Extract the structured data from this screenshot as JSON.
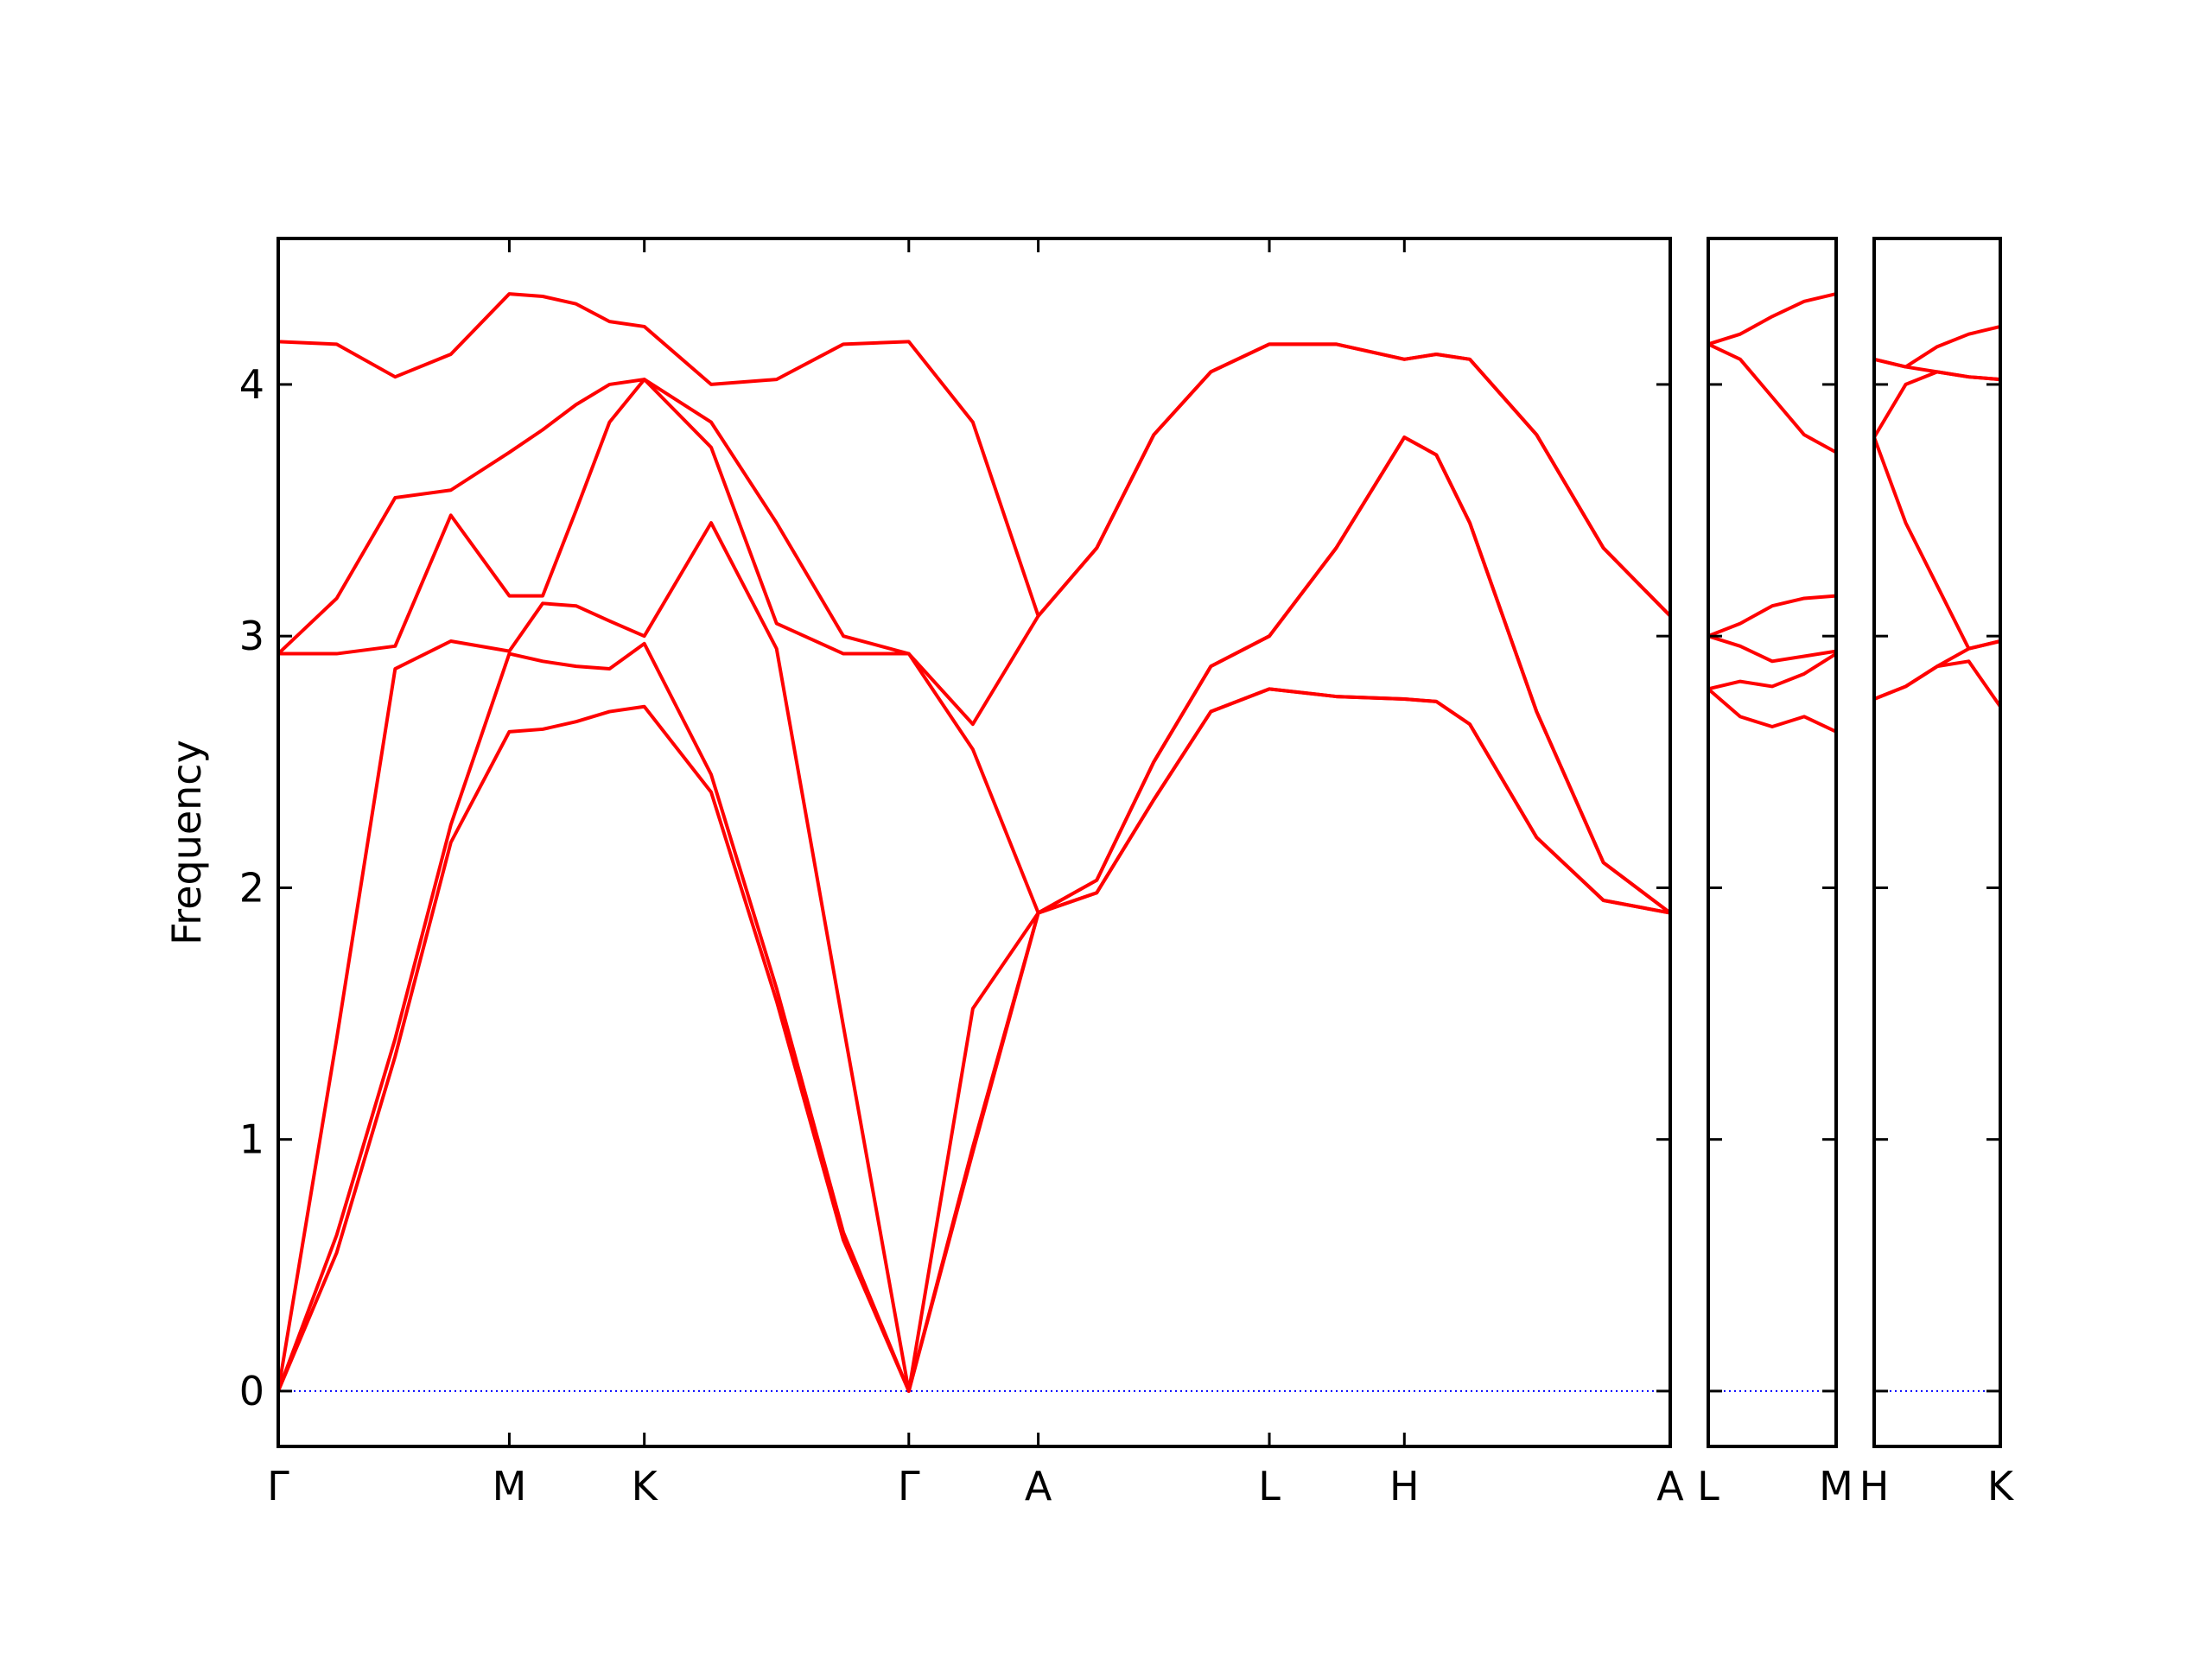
{
  "chart_data": [
    {
      "type": "line",
      "ylabel": "Frequency",
      "x": [
        0,
        0.042,
        0.084,
        0.124,
        0.166,
        0.19,
        0.214,
        0.238,
        0.263,
        0.311,
        0.358,
        0.406,
        0.453,
        0.499,
        0.546,
        0.588,
        0.629,
        0.67,
        0.712,
        0.76,
        0.809,
        0.832,
        0.856,
        0.904,
        0.952,
        1.0
      ],
      "xlim": [
        0,
        1
      ],
      "xticks": [
        {
          "value": 0,
          "label": "Γ"
        },
        {
          "value": 0.166,
          "label": "M"
        },
        {
          "value": 0.263,
          "label": "K"
        },
        {
          "value": 0.453,
          "label": "Γ"
        },
        {
          "value": 0.546,
          "label": "A"
        },
        {
          "value": 0.712,
          "label": "L"
        },
        {
          "value": 0.809,
          "label": "H"
        },
        {
          "value": 1.0,
          "label": "A"
        }
      ],
      "ylim": [
        -0.22,
        4.58
      ],
      "yticks": [
        0,
        1,
        2,
        3,
        4
      ],
      "show_ytick_labels": true,
      "hline": {
        "value": 0,
        "color": "#0000ff",
        "style": "dotted"
      },
      "series": [
        {
          "color": "#ff0000",
          "values": [
            0,
            0.55,
            1.33,
            2.18,
            2.62,
            2.63,
            2.66,
            2.7,
            2.72,
            2.38,
            1.55,
            0.6,
            0,
            0.95,
            1.9,
            1.98,
            2.35,
            2.7,
            2.79,
            2.76,
            2.75,
            2.74,
            2.65,
            2.2,
            1.95,
            1.9
          ]
        },
        {
          "color": "#ff0000",
          "values": [
            0,
            0.62,
            1.4,
            2.25,
            2.93,
            2.9,
            2.88,
            2.87,
            2.97,
            2.45,
            1.6,
            0.63,
            0,
            0.97,
            1.9,
            1.98,
            2.35,
            2.7,
            2.79,
            2.76,
            2.75,
            2.74,
            2.65,
            2.2,
            1.95,
            1.9
          ]
        },
        {
          "color": "#ff0000",
          "values": [
            0,
            1.4,
            2.87,
            2.98,
            2.94,
            3.13,
            3.12,
            3.06,
            3.0,
            3.45,
            2.95,
            1.45,
            0,
            1.52,
            1.9,
            2.03,
            2.5,
            2.88,
            3.0,
            3.35,
            3.79,
            3.72,
            3.45,
            2.7,
            2.1,
            1.9
          ]
        },
        {
          "color": "#ff0000",
          "values": [
            2.93,
            2.93,
            2.96,
            3.48,
            3.16,
            3.16,
            3.5,
            3.85,
            4.02,
            3.75,
            3.05,
            2.93,
            2.93,
            2.55,
            1.9,
            2.03,
            2.5,
            2.88,
            3.0,
            3.35,
            3.79,
            3.72,
            3.45,
            2.7,
            2.1,
            1.9
          ]
        },
        {
          "color": "#ff0000",
          "values": [
            2.93,
            3.15,
            3.55,
            3.58,
            3.73,
            3.82,
            3.92,
            4.0,
            4.02,
            3.85,
            3.45,
            3.0,
            2.93,
            2.65,
            3.08,
            3.35,
            3.8,
            4.05,
            4.16,
            4.16,
            4.1,
            4.12,
            4.1,
            3.8,
            3.35,
            3.08
          ]
        },
        {
          "color": "#ff0000",
          "values": [
            4.17,
            4.16,
            4.03,
            4.12,
            4.36,
            4.35,
            4.32,
            4.25,
            4.23,
            4.0,
            4.02,
            4.16,
            4.17,
            3.85,
            3.08,
            3.35,
            3.8,
            4.05,
            4.16,
            4.16,
            4.1,
            4.12,
            4.1,
            3.8,
            3.35,
            3.08
          ]
        }
      ]
    },
    {
      "type": "line",
      "x": [
        0,
        0.25,
        0.5,
        0.75,
        1.0
      ],
      "xlim": [
        0,
        1
      ],
      "xticks": [
        {
          "value": 0,
          "label": "L"
        },
        {
          "value": 1.0,
          "label": "M"
        }
      ],
      "ylim": [
        -0.22,
        4.58
      ],
      "yticks": [
        0,
        1,
        2,
        3,
        4
      ],
      "show_ytick_labels": false,
      "hline": {
        "value": 0,
        "color": "#0000ff",
        "style": "dotted"
      },
      "series": [
        {
          "color": "#ff0000",
          "values": [
            2.79,
            2.68,
            2.64,
            2.68,
            2.62
          ]
        },
        {
          "color": "#ff0000",
          "values": [
            2.79,
            2.82,
            2.8,
            2.85,
            2.93
          ]
        },
        {
          "color": "#ff0000",
          "values": [
            3.0,
            2.96,
            2.9,
            2.92,
            2.94
          ]
        },
        {
          "color": "#ff0000",
          "values": [
            3.0,
            3.05,
            3.12,
            3.15,
            3.16
          ]
        },
        {
          "color": "#ff0000",
          "values": [
            4.16,
            4.1,
            3.95,
            3.8,
            3.73
          ]
        },
        {
          "color": "#ff0000",
          "values": [
            4.16,
            4.2,
            4.27,
            4.33,
            4.36
          ]
        }
      ]
    },
    {
      "type": "line",
      "x": [
        0,
        0.25,
        0.5,
        0.75,
        1.0
      ],
      "xlim": [
        0,
        1
      ],
      "xticks": [
        {
          "value": 0,
          "label": "H"
        },
        {
          "value": 1.0,
          "label": "K"
        }
      ],
      "ylim": [
        -0.22,
        4.58
      ],
      "yticks": [
        0,
        1,
        2,
        3,
        4
      ],
      "show_ytick_labels": false,
      "hline": {
        "value": 0,
        "color": "#0000ff",
        "style": "dotted"
      },
      "series": [
        {
          "color": "#ff0000",
          "values": [
            2.75,
            2.8,
            2.88,
            2.9,
            2.72
          ]
        },
        {
          "color": "#ff0000",
          "values": [
            2.75,
            2.8,
            2.88,
            2.95,
            2.98
          ]
        },
        {
          "color": "#ff0000",
          "values": [
            3.79,
            3.45,
            3.2,
            2.95,
            2.98
          ]
        },
        {
          "color": "#ff0000",
          "values": [
            3.79,
            4.0,
            4.05,
            4.03,
            4.02
          ]
        },
        {
          "color": "#ff0000",
          "values": [
            4.1,
            4.07,
            4.05,
            4.03,
            4.02
          ]
        },
        {
          "color": "#ff0000",
          "values": [
            4.1,
            4.07,
            4.15,
            4.2,
            4.23
          ]
        }
      ]
    }
  ]
}
